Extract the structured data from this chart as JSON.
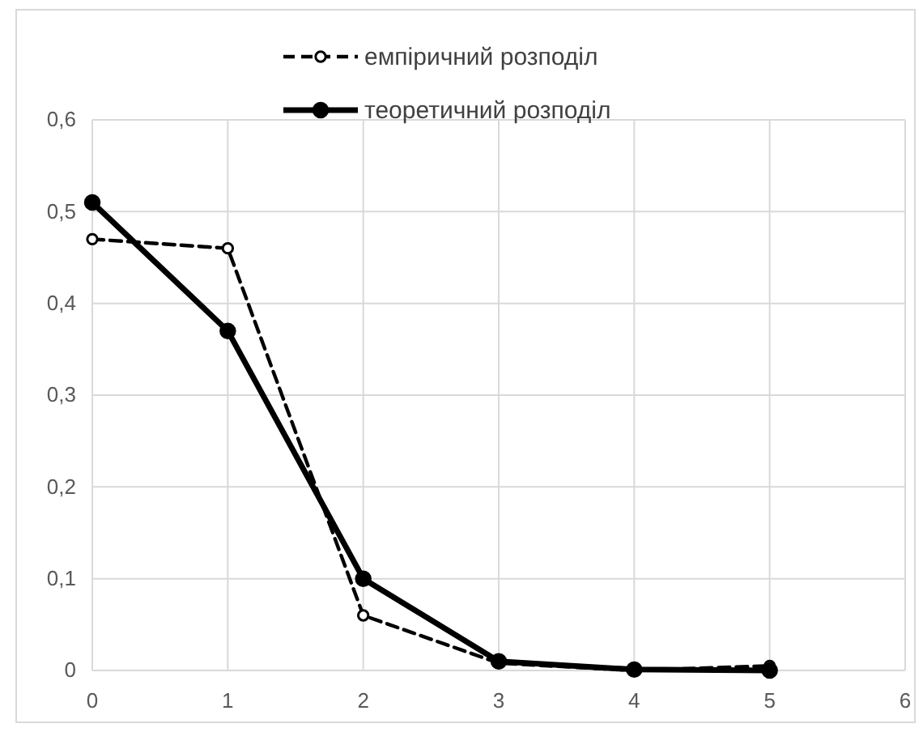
{
  "chart_data": {
    "type": "line",
    "x": [
      0,
      1,
      2,
      3,
      4,
      5
    ],
    "xlim": [
      0,
      6
    ],
    "xticks": [
      0,
      1,
      2,
      3,
      4,
      5,
      6
    ],
    "ylim": [
      0,
      0.6
    ],
    "yticks": [
      {
        "value": 0,
        "label": "0"
      },
      {
        "value": 0.1,
        "label": "0,1"
      },
      {
        "value": 0.2,
        "label": "0,2"
      },
      {
        "value": 0.3,
        "label": "0,3"
      },
      {
        "value": 0.4,
        "label": "0,4"
      },
      {
        "value": 0.5,
        "label": "0,5"
      },
      {
        "value": 0.6,
        "label": "0,6"
      }
    ],
    "grid": true,
    "legend": "top",
    "series": [
      {
        "name": "емпіричний розподіл",
        "color": "#000000",
        "values": [
          0.47,
          0.46,
          0.06,
          0.008,
          0,
          0.005
        ],
        "line_style": "dashed",
        "marker": "circle"
      },
      {
        "name": "теоретичний розподіл",
        "color": "#000000",
        "values": [
          0.51,
          0.37,
          0.1,
          0.01,
          0.001,
          0
        ],
        "line_style": "solid",
        "marker": "circle"
      }
    ]
  }
}
